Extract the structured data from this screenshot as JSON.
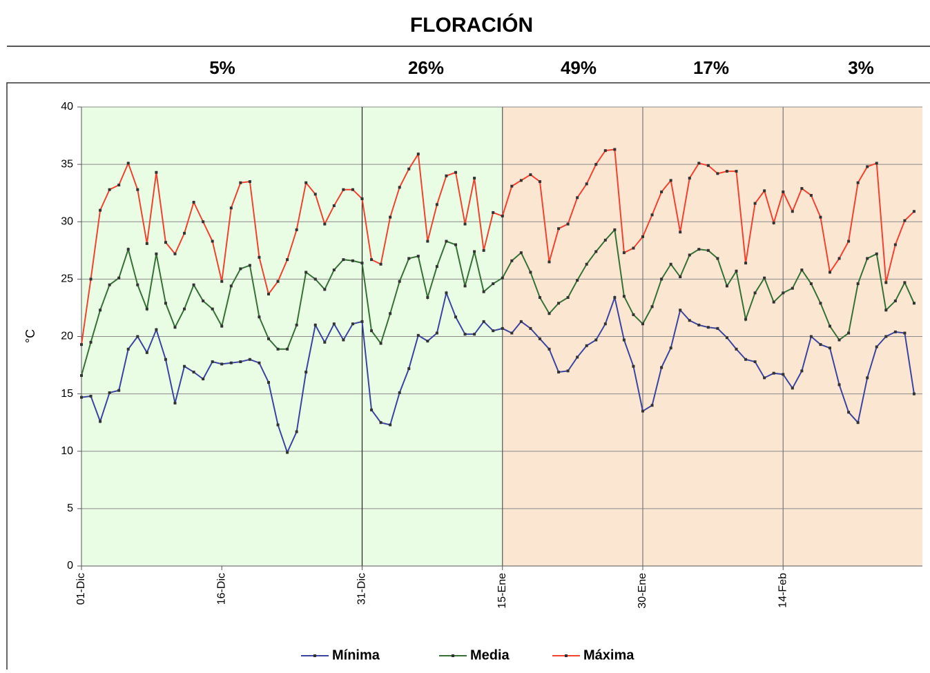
{
  "chart_data": {
    "type": "line",
    "title": "FLORACIÓN",
    "annotations": [
      "5%",
      "26%",
      "49%",
      "17%",
      "3%"
    ],
    "y_label": "°C",
    "categories": [
      "01-Dic",
      null,
      null,
      null,
      null,
      null,
      null,
      null,
      null,
      null,
      null,
      null,
      null,
      null,
      null,
      "16-Dic",
      null,
      null,
      null,
      null,
      null,
      null,
      null,
      null,
      null,
      null,
      null,
      null,
      null,
      null,
      "31-Dic",
      null,
      null,
      null,
      null,
      null,
      null,
      null,
      null,
      null,
      null,
      null,
      null,
      null,
      null,
      "15-Ene",
      null,
      null,
      null,
      null,
      null,
      null,
      null,
      null,
      null,
      null,
      null,
      null,
      null,
      null,
      "30-Ene",
      null,
      null,
      null,
      null,
      null,
      null,
      null,
      null,
      null,
      null,
      null,
      null,
      null,
      null,
      "14-Feb",
      null,
      null,
      null,
      null,
      null,
      null,
      null,
      null,
      null,
      null,
      null,
      null,
      null,
      null
    ],
    "series": [
      {
        "name": "Mínima",
        "color": "#3a44a0",
        "values": [
          14.7,
          14.8,
          12.6,
          15.1,
          15.3,
          18.9,
          20,
          18.6,
          20.6,
          18,
          14.2,
          17.4,
          16.9,
          16.3,
          17.8,
          17.6,
          17.7,
          17.8,
          18,
          17.7,
          16,
          12.3,
          9.9,
          11.7,
          16.9,
          21,
          19.5,
          21.1,
          19.7,
          21.1,
          21.3,
          13.6,
          12.5,
          12.3,
          15.1,
          17.2,
          20.1,
          19.6,
          20.3,
          23.8,
          21.7,
          20.2,
          20.2,
          21.3,
          20.5,
          20.7,
          20.3,
          21.3,
          20.7,
          19.8,
          18.9,
          16.9,
          17,
          18.2,
          19.2,
          19.7,
          21.1,
          23.4,
          19.7,
          17.4,
          13.5,
          14,
          17.3,
          19,
          22.3,
          21.4,
          21,
          20.8,
          20.7,
          19.9,
          18.9,
          18,
          17.8,
          16.4,
          16.8,
          16.7,
          15.5,
          17,
          20,
          19.3,
          19,
          15.8,
          13.4,
          12.5,
          16.4,
          19.1,
          20,
          20.4,
          20.3,
          15
        ]
      },
      {
        "name": "Media",
        "color": "#357035",
        "values": [
          16.6,
          19.5,
          22.3,
          24.5,
          25.1,
          27.6,
          24.5,
          22.4,
          27.2,
          22.9,
          20.8,
          22.4,
          24.5,
          23.1,
          22.4,
          20.9,
          24.4,
          25.9,
          26.2,
          21.7,
          19.8,
          18.9,
          18.9,
          21,
          25.6,
          25,
          24.1,
          25.8,
          26.7,
          26.6,
          26.4,
          20.5,
          19.4,
          22,
          24.8,
          26.8,
          27,
          23.4,
          26.1,
          28.3,
          28,
          24.4,
          27.4,
          23.9,
          24.6,
          25.1,
          26.6,
          27.3,
          25.6,
          23.4,
          22,
          22.9,
          23.4,
          24.9,
          26.3,
          27.4,
          28.4,
          29.3,
          23.5,
          21.9,
          21.1,
          22.6,
          25,
          26.3,
          25.2,
          27.1,
          27.6,
          27.5,
          26.8,
          24.4,
          25.7,
          21.5,
          23.8,
          25.1,
          23,
          23.8,
          24.2,
          25.8,
          24.6,
          22.9,
          20.9,
          19.7,
          20.3,
          24.6,
          26.8,
          27.2,
          22.3,
          23.1,
          24.7,
          22.9
        ]
      },
      {
        "name": "Máxima",
        "color": "#f2412f",
        "values": [
          19.3,
          25,
          31,
          32.8,
          33.2,
          35.1,
          32.8,
          28.1,
          34.3,
          28.2,
          27.2,
          29,
          31.7,
          30,
          28.3,
          24.8,
          31.2,
          33.4,
          33.5,
          26.9,
          23.7,
          24.8,
          26.7,
          29.3,
          33.4,
          32.4,
          29.8,
          31.4,
          32.8,
          32.8,
          32,
          26.7,
          26.3,
          30.4,
          33,
          34.6,
          35.9,
          28.3,
          31.5,
          34,
          34.3,
          29.8,
          33.8,
          27.5,
          30.8,
          30.5,
          33.1,
          33.6,
          34.1,
          33.5,
          26.5,
          29.4,
          29.8,
          32.1,
          33.3,
          35,
          36.2,
          36.3,
          27.3,
          27.7,
          28.7,
          30.6,
          32.6,
          33.6,
          29.1,
          33.8,
          35.1,
          34.9,
          34.2,
          34.4,
          34.4,
          26.4,
          31.6,
          32.7,
          29.9,
          32.6,
          30.9,
          32.9,
          32.3,
          30.4,
          25.6,
          26.8,
          28.3,
          33.4,
          34.8,
          35.1,
          24.7,
          28,
          30.1,
          30.9
        ]
      }
    ],
    "shaded_regions": [
      {
        "start": "01-Dic",
        "color": "#e9fce4"
      },
      {
        "start": "15-Ene",
        "color": "#fbe6d2"
      }
    ],
    "ylim": [
      0,
      40
    ],
    "yticks": [
      0,
      5,
      10,
      15,
      20,
      25,
      30,
      35,
      40
    ],
    "grid": true
  }
}
